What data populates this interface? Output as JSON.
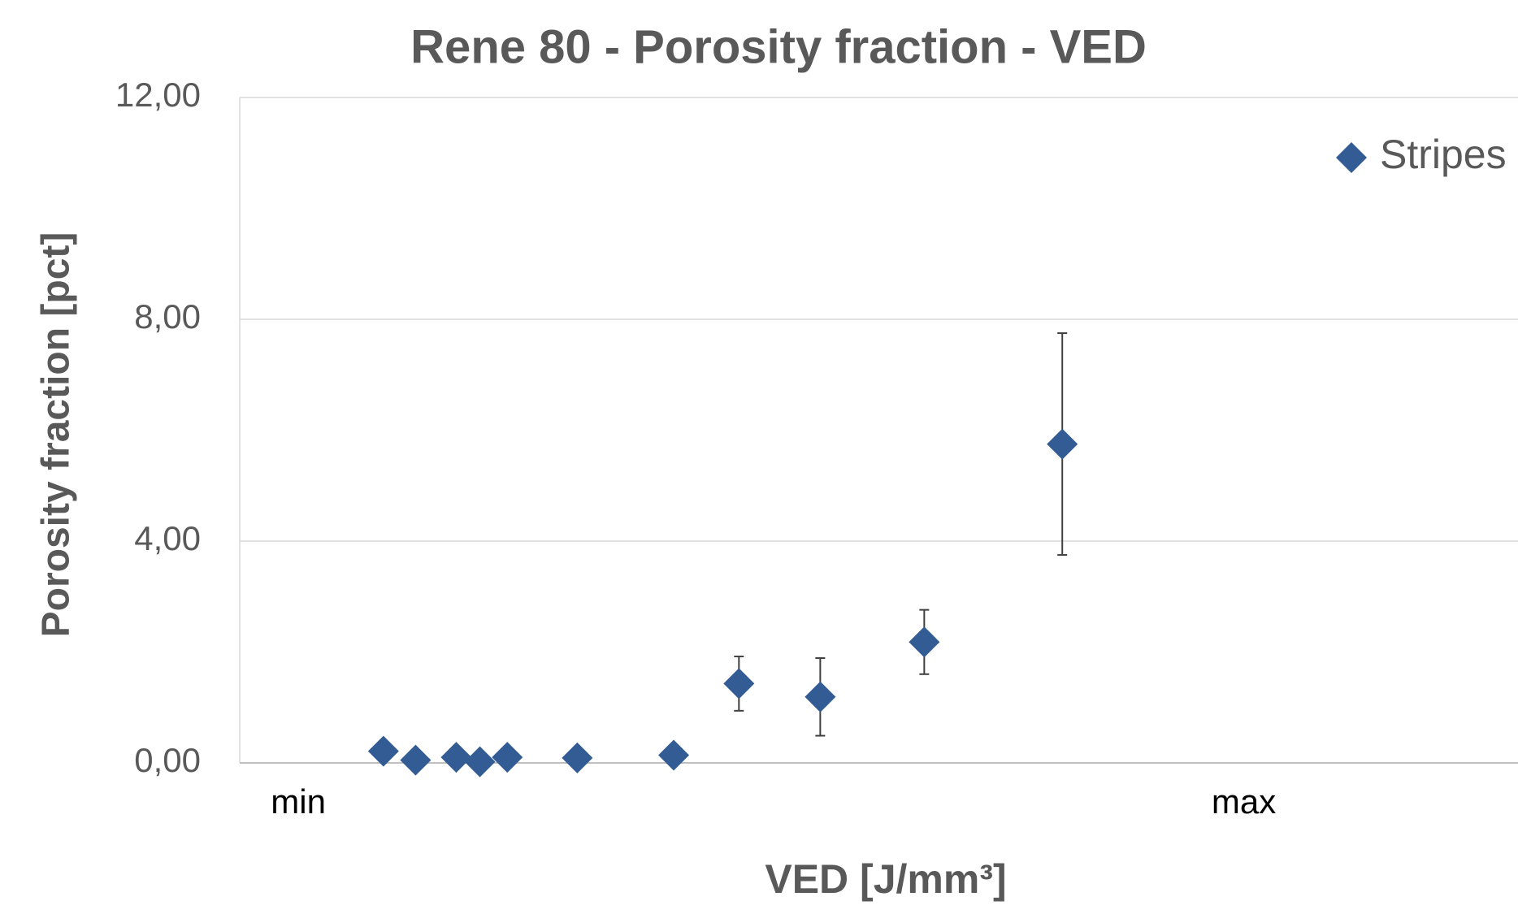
{
  "chart_data": {
    "type": "scatter",
    "title": "Rene 80 - Porosity fraction - VED",
    "x_label": "VED [J/mm³]",
    "y_label": "Porosity fraction [pct]",
    "series": [
      {
        "name": "Stripes",
        "color": "#335c94",
        "x": [
          0.09,
          0.124,
          0.167,
          0.192,
          0.221,
          0.295,
          0.397,
          0.466,
          0.552,
          0.662,
          0.808
        ],
        "values": [
          0.21,
          0.05,
          0.1,
          0.02,
          0.1,
          0.09,
          0.14,
          1.43,
          1.19,
          2.18,
          5.75
        ],
        "errors": [
          0,
          0,
          0,
          0,
          0,
          0,
          0,
          0.49,
          0.7,
          0.58,
          2.0
        ]
      }
    ],
    "xlim": [
      -0.062,
      1.29
    ],
    "xticks": [
      {
        "value": 0,
        "label": "min"
      },
      {
        "value": 1,
        "label": "max"
      }
    ],
    "ylim": [
      0,
      12
    ],
    "yticks": [
      {
        "value": 0,
        "label": "0,00"
      },
      {
        "value": 4,
        "label": "4,00"
      },
      {
        "value": 8,
        "label": "8,00"
      },
      {
        "value": 12,
        "label": "12,00"
      }
    ],
    "grid": true,
    "legend": "top-right"
  }
}
